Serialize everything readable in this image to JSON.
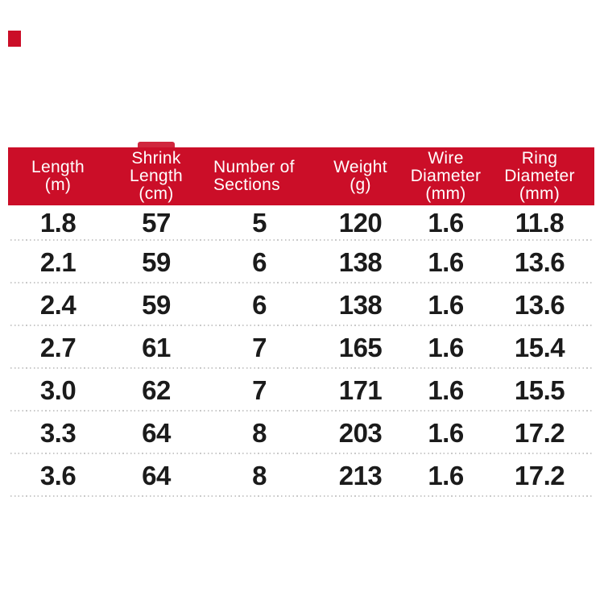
{
  "colors": {
    "accent_red": "#cb0e28",
    "header_text": "#ffffff",
    "body_text": "#1b1b1b",
    "separator": "#c9c9c9",
    "background": "#ffffff"
  },
  "chart_data": {
    "type": "table",
    "title": "",
    "columns": [
      {
        "id": "length",
        "label": "Length (m)",
        "lines": [
          "Length",
          "(m)"
        ]
      },
      {
        "id": "shrink-length",
        "label": "Shrink Length (cm)",
        "lines": [
          "Shrink",
          "Length",
          "(cm)"
        ]
      },
      {
        "id": "sections",
        "label": "Number of Sections",
        "lines": [
          "Number of",
          "Sections"
        ]
      },
      {
        "id": "weight",
        "label": "Weight (g)",
        "lines": [
          "Weight",
          "(g)"
        ]
      },
      {
        "id": "wire-diameter",
        "label": "Wire Diameter (mm)",
        "lines": [
          "Wire",
          "Diameter",
          "(mm)"
        ]
      },
      {
        "id": "ring-diameter",
        "label": "Ring Diameter (mm)",
        "lines": [
          "Ring",
          "Diameter",
          "(mm)"
        ]
      }
    ],
    "rows": [
      [
        "1.8",
        "57",
        "5",
        "120",
        "1.6",
        "11.8"
      ],
      [
        "2.1",
        "59",
        "6",
        "138",
        "1.6",
        "13.6"
      ],
      [
        "2.4",
        "59",
        "6",
        "138",
        "1.6",
        "13.6"
      ],
      [
        "2.7",
        "61",
        "7",
        "165",
        "1.6",
        "15.4"
      ],
      [
        "3.0",
        "62",
        "7",
        "171",
        "1.6",
        "15.5"
      ],
      [
        "3.3",
        "64",
        "8",
        "203",
        "1.6",
        "17.2"
      ],
      [
        "3.6",
        "64",
        "8",
        "213",
        "1.6",
        "17.2"
      ]
    ]
  }
}
